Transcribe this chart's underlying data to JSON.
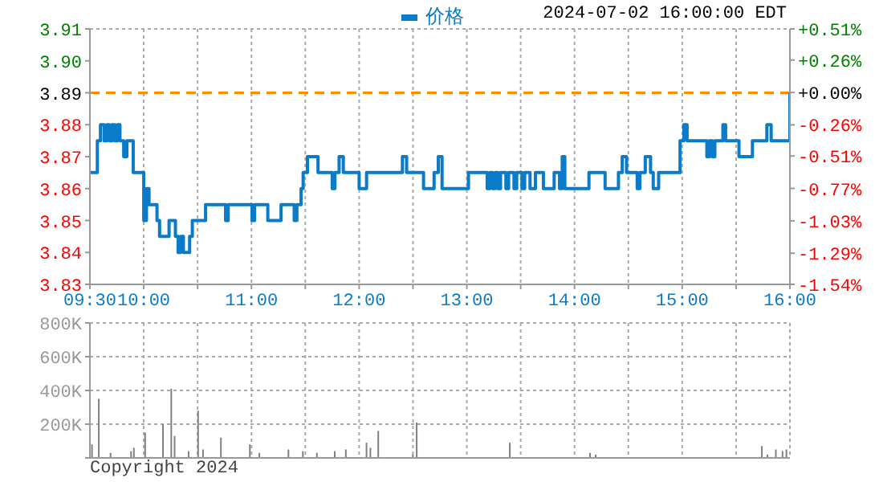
{
  "chart_data": [
    {
      "type": "step",
      "subtitle": "2024-07-02 16:00:00 EDT",
      "legend": "top",
      "grid": true,
      "x": [
        9.5,
        9.569,
        9.598,
        9.632,
        9.657,
        9.681,
        9.706,
        9.73,
        9.755,
        9.779,
        9.814,
        9.843,
        9.877,
        9.902,
        9.975,
        10.0,
        10.025,
        10.049,
        10.098,
        10.123,
        10.147,
        10.196,
        10.235,
        10.27,
        10.294,
        10.319,
        10.343,
        10.368,
        10.402,
        10.426,
        10.451,
        10.5,
        10.574,
        10.711,
        10.76,
        10.784,
        10.98,
        11.005,
        11.029,
        11.127,
        11.152,
        11.225,
        11.275,
        11.348,
        11.397,
        11.422,
        11.461,
        11.48,
        11.52,
        11.593,
        11.618,
        11.716,
        11.75,
        11.775,
        11.814,
        11.853,
        11.971,
        12.0,
        12.049,
        12.069,
        12.304,
        12.402,
        12.441,
        12.574,
        12.598,
        12.647,
        12.696,
        12.735,
        12.77,
        12.841,
        12.99,
        13.015,
        13.164,
        13.189,
        13.214,
        13.239,
        13.264,
        13.289,
        13.313,
        13.363,
        13.388,
        13.438,
        13.463,
        13.512,
        13.537,
        13.587,
        13.637,
        13.711,
        13.811,
        13.861,
        13.886,
        13.91,
        14.109,
        14.134,
        14.259,
        14.284,
        14.333,
        14.408,
        14.443,
        14.483,
        14.557,
        14.582,
        14.607,
        14.657,
        14.706,
        14.731,
        14.781,
        14.955,
        14.98,
        15.015,
        15.045,
        15.179,
        15.229,
        15.254,
        15.279,
        15.303,
        15.353,
        15.378,
        15.403,
        15.502,
        15.527,
        15.627,
        15.652,
        15.751,
        15.786,
        15.826,
        15.975,
        16.0
      ],
      "series": [
        {
          "name": "价格",
          "color": "#0a7bc8",
          "values": [
            3.865,
            3.875,
            3.88,
            3.875,
            3.88,
            3.875,
            3.88,
            3.875,
            3.88,
            3.875,
            3.87,
            3.875,
            3.875,
            3.865,
            3.865,
            3.85,
            3.86,
            3.855,
            3.855,
            3.85,
            3.845,
            3.845,
            3.85,
            3.85,
            3.845,
            3.84,
            3.845,
            3.84,
            3.84,
            3.845,
            3.85,
            3.85,
            3.855,
            3.855,
            3.85,
            3.855,
            3.855,
            3.85,
            3.855,
            3.855,
            3.85,
            3.85,
            3.855,
            3.855,
            3.85,
            3.855,
            3.86,
            3.865,
            3.87,
            3.87,
            3.865,
            3.865,
            3.86,
            3.865,
            3.87,
            3.865,
            3.865,
            3.86,
            3.86,
            3.865,
            3.865,
            3.87,
            3.865,
            3.865,
            3.86,
            3.86,
            3.865,
            3.87,
            3.86,
            3.86,
            3.86,
            3.865,
            3.865,
            3.86,
            3.865,
            3.86,
            3.865,
            3.86,
            3.865,
            3.86,
            3.865,
            3.86,
            3.865,
            3.86,
            3.865,
            3.86,
            3.865,
            3.86,
            3.865,
            3.86,
            3.87,
            3.86,
            3.86,
            3.865,
            3.865,
            3.86,
            3.86,
            3.865,
            3.87,
            3.865,
            3.865,
            3.86,
            3.865,
            3.87,
            3.865,
            3.86,
            3.865,
            3.865,
            3.875,
            3.88,
            3.875,
            3.875,
            3.87,
            3.875,
            3.87,
            3.875,
            3.875,
            3.88,
            3.875,
            3.875,
            3.87,
            3.87,
            3.875,
            3.875,
            3.88,
            3.875,
            3.875,
            3.89
          ]
        }
      ],
      "xlim": [
        9.5,
        16
      ],
      "xticks": [
        {
          "value": 9.5,
          "label": "09:30"
        },
        {
          "value": 10,
          "label": "10:00"
        },
        {
          "value": 10.5,
          "label": null
        },
        {
          "value": 11,
          "label": "11:00"
        },
        {
          "value": 11.5,
          "label": null
        },
        {
          "value": 12,
          "label": "12:00"
        },
        {
          "value": 12.5,
          "label": null
        },
        {
          "value": 13,
          "label": "13:00"
        },
        {
          "value": 13.5,
          "label": null
        },
        {
          "value": 14,
          "label": "14:00"
        },
        {
          "value": 14.5,
          "label": null
        },
        {
          "value": 15,
          "label": "15:00"
        },
        {
          "value": 15.5,
          "label": null
        },
        {
          "value": 16,
          "label": "16:00"
        }
      ],
      "ylim": [
        3.83,
        3.91
      ],
      "yticks": [
        {
          "value": 3.83,
          "label": "3.83"
        },
        {
          "value": 3.84,
          "label": "3.84"
        },
        {
          "value": 3.85,
          "label": "3.85"
        },
        {
          "value": 3.86,
          "label": "3.86"
        },
        {
          "value": 3.87,
          "label": "3.87"
        },
        {
          "value": 3.88,
          "label": "3.88"
        },
        {
          "value": 3.89,
          "label": "3.89"
        },
        {
          "value": 3.9,
          "label": "3.90"
        },
        {
          "value": 3.91,
          "label": "3.91"
        }
      ],
      "y2lim": [
        -1.54,
        0.51
      ],
      "y2ticks": [
        {
          "value": -1.54,
          "label": "-1.54%"
        },
        {
          "value": -1.29,
          "label": "-1.29%"
        },
        {
          "value": -1.03,
          "label": "-1.03%"
        },
        {
          "value": -0.77,
          "label": "-0.77%"
        },
        {
          "value": -0.51,
          "label": "-0.51%"
        },
        {
          "value": -0.26,
          "label": "-0.26%"
        },
        {
          "value": 0,
          "label": "+0.00%"
        },
        {
          "value": 0.26,
          "label": "+0.26%"
        },
        {
          "value": 0.51,
          "label": "+0.51%"
        }
      ],
      "ref_lines": [
        {
          "axis": "y",
          "value": 3.89,
          "color": "#ff8c00",
          "line_style": "dashed"
        }
      ]
    },
    {
      "type": "bar",
      "color": "#808080",
      "grid": true,
      "tick_labels": "y",
      "annotations": [
        "Copyright 2024"
      ],
      "x": [
        9.525,
        9.588,
        9.697,
        9.888,
        9.914,
        10.018,
        10.184,
        10.261,
        10.292,
        10.422,
        10.51,
        10.556,
        10.722,
        10.991,
        11.079,
        11.349,
        11.483,
        11.613,
        11.779,
        11.882,
        12.074,
        12.11,
        12.183,
        12.504,
        12.54,
        13.405,
        14.15,
        14.202,
        15.745,
        15.797,
        15.875,
        15.937,
        15.973
      ],
      "values": [
        80000,
        350000,
        30000,
        40000,
        60000,
        150000,
        200000,
        410000,
        130000,
        40000,
        280000,
        50000,
        120000,
        80000,
        30000,
        50000,
        40000,
        30000,
        40000,
        50000,
        90000,
        60000,
        160000,
        20000,
        210000,
        90000,
        30000,
        20000,
        70000,
        20000,
        50000,
        40000,
        50000
      ],
      "xlim": [
        9.5,
        16
      ],
      "xticks": [
        9.5,
        10,
        10.5,
        11,
        11.5,
        12,
        12.5,
        13,
        13.5,
        14,
        14.5,
        15,
        15.5,
        16
      ],
      "ylim": [
        0,
        800000
      ],
      "yticks": [
        {
          "value": 0,
          "label": null
        },
        {
          "value": 200000,
          "label": "200K"
        },
        {
          "value": 400000,
          "label": "400K"
        },
        {
          "value": 600000,
          "label": "600K"
        },
        {
          "value": 800000,
          "label": "800K"
        }
      ]
    }
  ]
}
